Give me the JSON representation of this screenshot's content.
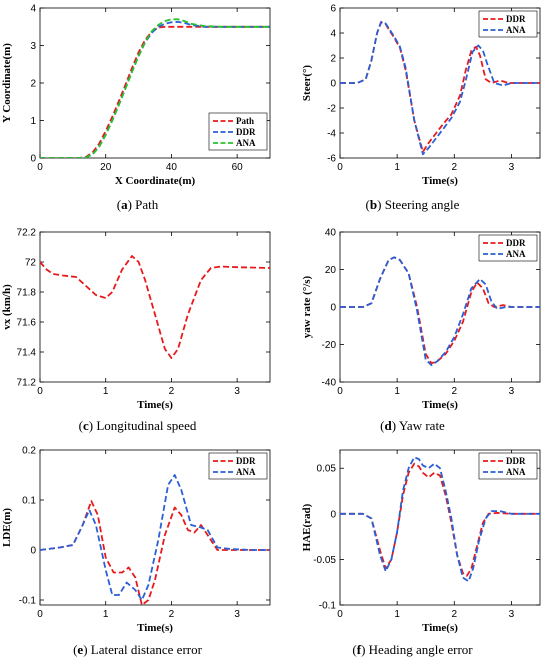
{
  "colors": {
    "red": "#e8191b",
    "blue": "#2a5fd6",
    "green": "#27c22a"
  },
  "chart_data": [
    {
      "id": "a",
      "type": "line",
      "caption_letter": "a",
      "caption_text": "Path",
      "xlabel": "X Coordinate(m)",
      "ylabel": "Y Coordinate(m)",
      "xlim": [
        0,
        70
      ],
      "ylim": [
        0,
        4
      ],
      "xticks": [
        0,
        20,
        40,
        60
      ],
      "yticks": [
        0,
        1,
        2,
        3,
        4
      ],
      "xtick_labels": [
        "0",
        "20",
        "40",
        "60"
      ],
      "ytick_labels": [
        "0",
        "1",
        "2",
        "3",
        "4"
      ],
      "legend": "bottom-right",
      "series": [
        {
          "name": "Path",
          "color": "red",
          "x": [
            0,
            12,
            14,
            16,
            18,
            20,
            22,
            24,
            26,
            28,
            30,
            32,
            34,
            36,
            38,
            40,
            42,
            45,
            50,
            60,
            70
          ],
          "y": [
            0,
            0,
            0.03,
            0.15,
            0.38,
            0.72,
            1.1,
            1.52,
            1.95,
            2.4,
            2.82,
            3.15,
            3.37,
            3.48,
            3.5,
            3.5,
            3.5,
            3.5,
            3.5,
            3.5,
            3.5
          ]
        },
        {
          "name": "DDR",
          "color": "blue",
          "x": [
            0,
            12,
            14,
            16,
            18,
            20,
            22,
            24,
            26,
            28,
            30,
            32,
            34,
            36,
            38,
            40,
            42,
            44,
            46,
            50,
            55,
            60,
            70
          ],
          "y": [
            0,
            0,
            0.02,
            0.1,
            0.3,
            0.62,
            1.0,
            1.42,
            1.85,
            2.3,
            2.72,
            3.08,
            3.34,
            3.5,
            3.58,
            3.62,
            3.63,
            3.6,
            3.55,
            3.5,
            3.5,
            3.5,
            3.5
          ]
        },
        {
          "name": "ANA",
          "color": "green",
          "x": [
            0,
            12,
            14,
            16,
            18,
            20,
            22,
            24,
            26,
            28,
            30,
            32,
            34,
            36,
            38,
            40,
            42,
            44,
            46,
            50,
            55,
            60,
            70
          ],
          "y": [
            0,
            0,
            0.02,
            0.1,
            0.3,
            0.62,
            1.0,
            1.42,
            1.85,
            2.3,
            2.72,
            3.1,
            3.38,
            3.55,
            3.65,
            3.7,
            3.7,
            3.65,
            3.58,
            3.52,
            3.5,
            3.5,
            3.5
          ]
        }
      ]
    },
    {
      "id": "b",
      "type": "line",
      "caption_letter": "b",
      "caption_text": "Steering angle",
      "xlabel": "Time(s)",
      "ylabel": "Steer(°)",
      "xlim": [
        0,
        3.5
      ],
      "ylim": [
        -6,
        6
      ],
      "xticks": [
        0,
        1,
        2,
        3
      ],
      "yticks": [
        -6,
        -4,
        -2,
        0,
        2,
        4,
        6
      ],
      "xtick_labels": [
        "0",
        "1",
        "2",
        "3"
      ],
      "ytick_labels": [
        "-6",
        "-4",
        "-2",
        "0",
        "2",
        "4",
        "6"
      ],
      "legend": "top-right",
      "series": [
        {
          "name": "DDR",
          "color": "red",
          "x": [
            0,
            0.3,
            0.45,
            0.55,
            0.65,
            0.72,
            0.8,
            0.95,
            1.05,
            1.15,
            1.3,
            1.45,
            1.55,
            1.65,
            1.8,
            1.95,
            2.1,
            2.2,
            2.3,
            2.38,
            2.45,
            2.55,
            2.65,
            2.8,
            2.95,
            3.1,
            3.5
          ],
          "y": [
            0,
            0,
            0.3,
            1.8,
            4.0,
            4.85,
            4.7,
            3.6,
            2.8,
            1.0,
            -3.0,
            -5.5,
            -4.8,
            -4.2,
            -3.3,
            -2.5,
            -1.0,
            1.0,
            2.6,
            2.9,
            2.2,
            0.3,
            0,
            0.2,
            0,
            0,
            0
          ]
        },
        {
          "name": "ANA",
          "color": "blue",
          "x": [
            0,
            0.3,
            0.45,
            0.55,
            0.65,
            0.72,
            0.8,
            0.95,
            1.05,
            1.15,
            1.3,
            1.45,
            1.55,
            1.65,
            1.8,
            1.95,
            2.1,
            2.2,
            2.32,
            2.42,
            2.5,
            2.58,
            2.7,
            2.85,
            3.0,
            3.2,
            3.5
          ],
          "y": [
            0,
            0,
            0.3,
            1.8,
            4.0,
            4.9,
            4.75,
            3.7,
            2.9,
            1.2,
            -3.0,
            -5.7,
            -5.2,
            -4.6,
            -3.7,
            -2.8,
            -1.5,
            0.2,
            2.5,
            3.0,
            2.6,
            1.5,
            0,
            -0.2,
            0,
            0,
            0
          ]
        }
      ]
    },
    {
      "id": "c",
      "type": "line",
      "caption_letter": "c",
      "caption_text": "Longitudinal speed",
      "xlabel": "Time(s)",
      "ylabel": "vx (km/h)",
      "xlim": [
        0,
        3.5
      ],
      "ylim": [
        71.2,
        72.2
      ],
      "xticks": [
        0,
        1,
        2,
        3
      ],
      "yticks": [
        71.2,
        71.4,
        71.6,
        71.8,
        72,
        72.2
      ],
      "xtick_labels": [
        "0",
        "1",
        "2",
        "3"
      ],
      "ytick_labels": [
        "71.2",
        "71.4",
        "71.6",
        "71.8",
        "72",
        "72.2"
      ],
      "legend": "none",
      "series": [
        {
          "color": "red",
          "x": [
            0,
            0.1,
            0.2,
            0.35,
            0.55,
            0.7,
            0.85,
            1.0,
            1.1,
            1.25,
            1.4,
            1.5,
            1.6,
            1.75,
            1.9,
            2.0,
            2.1,
            2.25,
            2.45,
            2.6,
            2.75,
            3.0,
            3.5
          ],
          "y": [
            72.0,
            71.95,
            71.92,
            71.91,
            71.9,
            71.84,
            71.78,
            71.76,
            71.8,
            71.95,
            72.04,
            72.0,
            71.88,
            71.65,
            71.42,
            71.36,
            71.42,
            71.65,
            71.88,
            71.96,
            71.97,
            71.965,
            71.96
          ]
        }
      ]
    },
    {
      "id": "d",
      "type": "line",
      "caption_letter": "d",
      "caption_text": "Yaw rate",
      "xlabel": "Time(s)",
      "ylabel": "yaw rate (°/s)",
      "xlim": [
        0,
        3.5
      ],
      "ylim": [
        -40,
        40
      ],
      "xticks": [
        0,
        1,
        2,
        3
      ],
      "yticks": [
        -40,
        -20,
        0,
        20,
        40
      ],
      "xtick_labels": [
        "0",
        "1",
        "2",
        "3"
      ],
      "ytick_labels": [
        "-40",
        "-20",
        "0",
        "20",
        "40"
      ],
      "legend": "top-right",
      "series": [
        {
          "name": "DDR",
          "color": "red",
          "x": [
            0,
            0.4,
            0.55,
            0.7,
            0.85,
            0.95,
            1.05,
            1.2,
            1.35,
            1.5,
            1.6,
            1.7,
            1.85,
            2.0,
            2.15,
            2.3,
            2.4,
            2.5,
            2.6,
            2.7,
            2.85,
            3.0,
            3.5
          ],
          "y": [
            0,
            0,
            2,
            15,
            25,
            26.5,
            25,
            18,
            0,
            -25,
            -30,
            -29,
            -25,
            -18,
            -8,
            8,
            13,
            10,
            2,
            0,
            1,
            0,
            0
          ]
        },
        {
          "name": "ANA",
          "color": "blue",
          "x": [
            0,
            0.4,
            0.55,
            0.7,
            0.85,
            0.95,
            1.05,
            1.2,
            1.35,
            1.5,
            1.6,
            1.7,
            1.85,
            2.0,
            2.15,
            2.3,
            2.45,
            2.55,
            2.65,
            2.75,
            2.9,
            3.1,
            3.5
          ],
          "y": [
            0,
            0,
            2,
            15,
            25,
            26.5,
            25,
            18,
            -2,
            -28,
            -31,
            -29,
            -24,
            -16,
            -4,
            10,
            15,
            12,
            3,
            -1,
            0,
            0,
            0
          ]
        }
      ]
    },
    {
      "id": "e",
      "type": "line",
      "caption_letter": "e",
      "caption_text": "Lateral distance error",
      "xlabel": "Time(s)",
      "ylabel": "LDE(m)",
      "xlim": [
        0,
        3.5
      ],
      "ylim": [
        -0.11,
        0.2
      ],
      "xticks": [
        0,
        1,
        2,
        3
      ],
      "yticks": [
        -0.1,
        0,
        0.1,
        0.2
      ],
      "xtick_labels": [
        "0",
        "1",
        "2",
        "3"
      ],
      "ytick_labels": [
        "-0.1",
        "0",
        "0.1",
        "0.2"
      ],
      "legend": "top-right",
      "series": [
        {
          "name": "DDR",
          "color": "red",
          "x": [
            0,
            0.3,
            0.5,
            0.65,
            0.78,
            0.88,
            1.0,
            1.12,
            1.25,
            1.35,
            1.45,
            1.55,
            1.65,
            1.75,
            1.9,
            2.05,
            2.15,
            2.25,
            2.35,
            2.45,
            2.55,
            2.7,
            3.0,
            3.5
          ],
          "y": [
            0,
            0.005,
            0.01,
            0.05,
            0.098,
            0.07,
            -0.015,
            -0.045,
            -0.045,
            -0.035,
            -0.055,
            -0.11,
            -0.1,
            -0.06,
            0.03,
            0.085,
            0.07,
            0.04,
            0.035,
            0.05,
            0.03,
            0,
            0,
            0
          ]
        },
        {
          "name": "ANA",
          "color": "blue",
          "x": [
            0,
            0.3,
            0.5,
            0.65,
            0.75,
            0.85,
            1.0,
            1.1,
            1.2,
            1.32,
            1.45,
            1.55,
            1.65,
            1.8,
            1.95,
            2.05,
            2.15,
            2.3,
            2.45,
            2.55,
            2.7,
            2.9,
            3.2,
            3.5
          ],
          "y": [
            0,
            0.005,
            0.01,
            0.05,
            0.08,
            0.05,
            -0.04,
            -0.09,
            -0.09,
            -0.065,
            -0.08,
            -0.1,
            -0.07,
            0.02,
            0.13,
            0.15,
            0.12,
            0.05,
            0.045,
            0.04,
            0.005,
            0.002,
            0,
            0
          ]
        }
      ]
    },
    {
      "id": "f",
      "type": "line",
      "caption_letter": "f",
      "caption_text": "Heading angle error",
      "xlabel": "Time(s)",
      "ylabel": "HAE(rad)",
      "xlim": [
        0,
        3.5
      ],
      "ylim": [
        -0.1,
        0.07
      ],
      "xticks": [
        0,
        1,
        2,
        3
      ],
      "yticks": [
        -0.1,
        -0.05,
        0,
        0.05
      ],
      "xtick_labels": [
        "0",
        "1",
        "2",
        "3"
      ],
      "ytick_labels": [
        "-0.1",
        "-0.05",
        "0",
        "0.05"
      ],
      "legend": "top-right",
      "series": [
        {
          "name": "DDR",
          "color": "red",
          "x": [
            0,
            0.4,
            0.55,
            0.7,
            0.8,
            0.9,
            1.0,
            1.1,
            1.2,
            1.3,
            1.38,
            1.45,
            1.55,
            1.65,
            1.75,
            1.85,
            1.95,
            2.05,
            2.15,
            2.22,
            2.3,
            2.4,
            2.5,
            2.6,
            2.75,
            3.0,
            3.5
          ],
          "y": [
            0,
            0,
            -0.005,
            -0.04,
            -0.06,
            -0.05,
            -0.02,
            0.02,
            0.045,
            0.055,
            0.052,
            0.045,
            0.04,
            0.045,
            0.042,
            0.02,
            -0.01,
            -0.045,
            -0.065,
            -0.068,
            -0.06,
            -0.035,
            -0.01,
            0,
            0.001,
            0,
            0
          ]
        },
        {
          "name": "ANA",
          "color": "blue",
          "x": [
            0,
            0.4,
            0.55,
            0.7,
            0.8,
            0.9,
            1.0,
            1.1,
            1.2,
            1.3,
            1.38,
            1.45,
            1.55,
            1.65,
            1.75,
            1.85,
            1.95,
            2.05,
            2.15,
            2.25,
            2.33,
            2.43,
            2.55,
            2.65,
            2.8,
            3.0,
            3.5
          ],
          "y": [
            0,
            0,
            -0.005,
            -0.045,
            -0.063,
            -0.05,
            -0.02,
            0.025,
            0.05,
            0.062,
            0.06,
            0.053,
            0.05,
            0.055,
            0.05,
            0.025,
            -0.005,
            -0.045,
            -0.07,
            -0.074,
            -0.06,
            -0.03,
            -0.005,
            0.003,
            0.003,
            0,
            0
          ]
        }
      ]
    }
  ]
}
